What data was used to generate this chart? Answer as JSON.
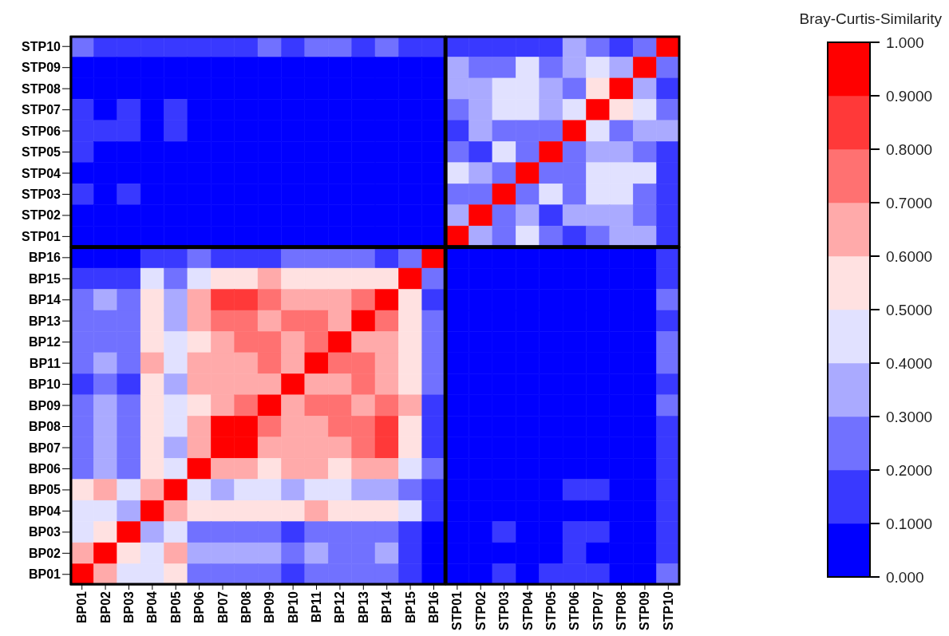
{
  "chart_data": {
    "type": "heatmap",
    "clabel": "Bray-Curtis-Similarity",
    "categories": [
      "BP01",
      "BP02",
      "BP03",
      "BP04",
      "BP05",
      "BP06",
      "BP07",
      "BP08",
      "BP09",
      "BP10",
      "BP11",
      "BP12",
      "BP13",
      "BP14",
      "BP15",
      "BP16",
      "STP01",
      "STP02",
      "STP03",
      "STP04",
      "STP05",
      "STP06",
      "STP07",
      "STP08",
      "STP09",
      "STP10"
    ],
    "y_categories": [
      "STP10",
      "STP09",
      "STP08",
      "STP07",
      "STP06",
      "STP05",
      "STP04",
      "STP03",
      "STP02",
      "STP01",
      "BP16",
      "BP15",
      "BP14",
      "BP13",
      "BP12",
      "BP11",
      "BP10",
      "BP09",
      "BP08",
      "BP07",
      "BP06",
      "BP05",
      "BP04",
      "BP03",
      "BP02",
      "BP01"
    ],
    "cells": [
      [
        0.25,
        0.15,
        0.15,
        0.15,
        0.15,
        0.15,
        0.15,
        0.15,
        0.25,
        0.15,
        0.25,
        0.25,
        0.15,
        0.25,
        0.15,
        0.15,
        0.15,
        0.15,
        0.15,
        0.15,
        0.15,
        0.35,
        0.25,
        0.15,
        0.25,
        1
      ],
      [
        0.05,
        0.05,
        0.05,
        0.05,
        0.05,
        0.05,
        0.05,
        0.05,
        0.05,
        0.05,
        0.05,
        0.05,
        0.05,
        0.05,
        0.05,
        0.05,
        0.35,
        0.25,
        0.25,
        0.45,
        0.25,
        0.35,
        0.45,
        0.35,
        1,
        0.25
      ],
      [
        0.05,
        0.05,
        0.05,
        0.05,
        0.05,
        0.05,
        0.05,
        0.05,
        0.05,
        0.05,
        0.05,
        0.05,
        0.05,
        0.05,
        0.05,
        0.05,
        0.35,
        0.35,
        0.45,
        0.45,
        0.35,
        0.25,
        0.55,
        1,
        0.35,
        0.15
      ],
      [
        0.15,
        0.05,
        0.15,
        0.05,
        0.15,
        0.05,
        0.05,
        0.05,
        0.05,
        0.05,
        0.05,
        0.05,
        0.05,
        0.05,
        0.05,
        0.05,
        0.25,
        0.35,
        0.45,
        0.45,
        0.35,
        0.45,
        1,
        0.55,
        0.45,
        0.25
      ],
      [
        0.15,
        0.15,
        0.15,
        0.05,
        0.15,
        0.05,
        0.05,
        0.05,
        0.05,
        0.05,
        0.05,
        0.05,
        0.05,
        0.05,
        0.05,
        0.05,
        0.15,
        0.35,
        0.25,
        0.25,
        0.25,
        1,
        0.45,
        0.25,
        0.35,
        0.35
      ],
      [
        0.15,
        0.05,
        0.05,
        0.05,
        0.05,
        0.05,
        0.05,
        0.05,
        0.05,
        0.05,
        0.05,
        0.05,
        0.05,
        0.05,
        0.05,
        0.05,
        0.25,
        0.15,
        0.45,
        0.25,
        1,
        0.25,
        0.35,
        0.35,
        0.25,
        0.15
      ],
      [
        0.05,
        0.05,
        0.05,
        0.05,
        0.05,
        0.05,
        0.05,
        0.05,
        0.05,
        0.05,
        0.05,
        0.05,
        0.05,
        0.05,
        0.05,
        0.05,
        0.45,
        0.35,
        0.25,
        1,
        0.25,
        0.25,
        0.45,
        0.45,
        0.45,
        0.15
      ],
      [
        0.15,
        0.05,
        0.15,
        0.05,
        0.05,
        0.05,
        0.05,
        0.05,
        0.05,
        0.05,
        0.05,
        0.05,
        0.05,
        0.05,
        0.05,
        0.05,
        0.25,
        0.25,
        1,
        0.25,
        0.45,
        0.25,
        0.45,
        0.45,
        0.25,
        0.15
      ],
      [
        0.05,
        0.05,
        0.05,
        0.05,
        0.05,
        0.05,
        0.05,
        0.05,
        0.05,
        0.05,
        0.05,
        0.05,
        0.05,
        0.05,
        0.05,
        0.05,
        0.35,
        1,
        0.25,
        0.35,
        0.15,
        0.35,
        0.35,
        0.35,
        0.25,
        0.15
      ],
      [
        0.05,
        0.05,
        0.05,
        0.05,
        0.05,
        0.05,
        0.05,
        0.05,
        0.05,
        0.05,
        0.05,
        0.05,
        0.05,
        0.05,
        0.05,
        0.05,
        1,
        0.35,
        0.25,
        0.45,
        0.25,
        0.15,
        0.25,
        0.35,
        0.35,
        0.15
      ],
      [
        0.05,
        0.05,
        0.05,
        0.15,
        0.15,
        0.25,
        0.15,
        0.15,
        0.15,
        0.25,
        0.25,
        0.25,
        0.25,
        0.15,
        0.25,
        1,
        0.05,
        0.05,
        0.05,
        0.05,
        0.05,
        0.05,
        0.05,
        0.05,
        0.05,
        0.15
      ],
      [
        0.15,
        0.15,
        0.15,
        0.45,
        0.25,
        0.45,
        0.55,
        0.55,
        0.65,
        0.55,
        0.55,
        0.55,
        0.55,
        0.55,
        1,
        0.25,
        0.05,
        0.05,
        0.05,
        0.05,
        0.05,
        0.05,
        0.05,
        0.05,
        0.05,
        0.15
      ],
      [
        0.25,
        0.35,
        0.25,
        0.55,
        0.35,
        0.65,
        0.85,
        0.85,
        0.75,
        0.65,
        0.65,
        0.65,
        0.75,
        1,
        0.55,
        0.15,
        0.05,
        0.05,
        0.05,
        0.05,
        0.05,
        0.05,
        0.05,
        0.05,
        0.05,
        0.25
      ],
      [
        0.25,
        0.25,
        0.25,
        0.55,
        0.35,
        0.65,
        0.75,
        0.75,
        0.65,
        0.75,
        0.75,
        0.65,
        1,
        0.75,
        0.55,
        0.25,
        0.05,
        0.05,
        0.05,
        0.05,
        0.05,
        0.05,
        0.05,
        0.05,
        0.05,
        0.15
      ],
      [
        0.25,
        0.25,
        0.25,
        0.55,
        0.45,
        0.55,
        0.65,
        0.75,
        0.75,
        0.65,
        0.75,
        1,
        0.65,
        0.65,
        0.55,
        0.25,
        0.05,
        0.05,
        0.05,
        0.05,
        0.05,
        0.05,
        0.05,
        0.05,
        0.05,
        0.25
      ],
      [
        0.25,
        0.35,
        0.25,
        0.65,
        0.45,
        0.65,
        0.65,
        0.65,
        0.75,
        0.65,
        1,
        0.75,
        0.75,
        0.65,
        0.55,
        0.25,
        0.05,
        0.05,
        0.05,
        0.05,
        0.05,
        0.05,
        0.05,
        0.05,
        0.05,
        0.25
      ],
      [
        0.15,
        0.25,
        0.15,
        0.55,
        0.35,
        0.65,
        0.65,
        0.65,
        0.65,
        1,
        0.65,
        0.65,
        0.75,
        0.65,
        0.55,
        0.25,
        0.05,
        0.05,
        0.05,
        0.05,
        0.05,
        0.05,
        0.05,
        0.05,
        0.05,
        0.15
      ],
      [
        0.25,
        0.35,
        0.25,
        0.55,
        0.45,
        0.55,
        0.65,
        0.75,
        1,
        0.65,
        0.75,
        0.75,
        0.65,
        0.75,
        0.65,
        0.15,
        0.05,
        0.05,
        0.05,
        0.05,
        0.05,
        0.05,
        0.05,
        0.05,
        0.05,
        0.25
      ],
      [
        0.25,
        0.35,
        0.25,
        0.55,
        0.45,
        0.65,
        0.95,
        1,
        0.75,
        0.65,
        0.65,
        0.75,
        0.75,
        0.85,
        0.55,
        0.15,
        0.05,
        0.05,
        0.05,
        0.05,
        0.05,
        0.05,
        0.05,
        0.05,
        0.05,
        0.15
      ],
      [
        0.25,
        0.35,
        0.25,
        0.55,
        0.35,
        0.65,
        1,
        0.95,
        0.65,
        0.65,
        0.65,
        0.65,
        0.75,
        0.85,
        0.55,
        0.15,
        0.05,
        0.05,
        0.05,
        0.05,
        0.05,
        0.05,
        0.05,
        0.05,
        0.05,
        0.15
      ],
      [
        0.25,
        0.35,
        0.25,
        0.55,
        0.45,
        1,
        0.65,
        0.65,
        0.55,
        0.65,
        0.65,
        0.55,
        0.65,
        0.65,
        0.45,
        0.25,
        0.05,
        0.05,
        0.05,
        0.05,
        0.05,
        0.05,
        0.05,
        0.05,
        0.05,
        0.15
      ],
      [
        0.55,
        0.65,
        0.45,
        0.65,
        1,
        0.45,
        0.35,
        0.45,
        0.45,
        0.35,
        0.45,
        0.45,
        0.35,
        0.35,
        0.25,
        0.15,
        0.05,
        0.05,
        0.05,
        0.05,
        0.05,
        0.15,
        0.15,
        0.05,
        0.05,
        0.15
      ],
      [
        0.45,
        0.45,
        0.35,
        1,
        0.65,
        0.55,
        0.55,
        0.55,
        0.55,
        0.55,
        0.65,
        0.55,
        0.55,
        0.55,
        0.45,
        0.15,
        0.05,
        0.05,
        0.05,
        0.05,
        0.05,
        0.05,
        0.05,
        0.05,
        0.05,
        0.15
      ],
      [
        0.45,
        0.55,
        1,
        0.35,
        0.45,
        0.25,
        0.25,
        0.25,
        0.25,
        0.15,
        0.25,
        0.25,
        0.25,
        0.25,
        0.15,
        0.05,
        0.05,
        0.05,
        0.15,
        0.05,
        0.05,
        0.15,
        0.15,
        0.05,
        0.05,
        0.15
      ],
      [
        0.65,
        1,
        0.55,
        0.45,
        0.65,
        0.35,
        0.35,
        0.35,
        0.35,
        0.25,
        0.35,
        0.25,
        0.25,
        0.35,
        0.15,
        0.05,
        0.05,
        0.05,
        0.05,
        0.05,
        0.05,
        0.15,
        0.05,
        0.05,
        0.05,
        0.15
      ],
      [
        1,
        0.65,
        0.45,
        0.45,
        0.55,
        0.25,
        0.25,
        0.25,
        0.25,
        0.15,
        0.25,
        0.25,
        0.25,
        0.25,
        0.15,
        0.05,
        0.05,
        0.05,
        0.15,
        0.05,
        0.15,
        0.15,
        0.15,
        0.05,
        0.05,
        0.25
      ]
    ],
    "clim": [
      0,
      1
    ],
    "cticks": [
      {
        "value": 0,
        "label": "0.000"
      },
      {
        "value": 0.1,
        "label": "0.1000"
      },
      {
        "value": 0.2,
        "label": "0.2000"
      },
      {
        "value": 0.3,
        "label": "0.3000"
      },
      {
        "value": 0.4,
        "label": "0.4000"
      },
      {
        "value": 0.5,
        "label": "0.5000"
      },
      {
        "value": 0.6,
        "label": "0.6000"
      },
      {
        "value": 0.7,
        "label": "0.7000"
      },
      {
        "value": 0.8,
        "label": "0.8000"
      },
      {
        "value": 0.9,
        "label": "0.9000"
      },
      {
        "value": 1,
        "label": "1.000"
      }
    ],
    "colors": [
      "#0000ff",
      "#3939ff",
      "#7171ff",
      "#aaaaff",
      "#e1e1ff",
      "#ffe1e1",
      "#ffaaaa",
      "#ff7171",
      "#ff3939",
      "#ff0000"
    ]
  }
}
